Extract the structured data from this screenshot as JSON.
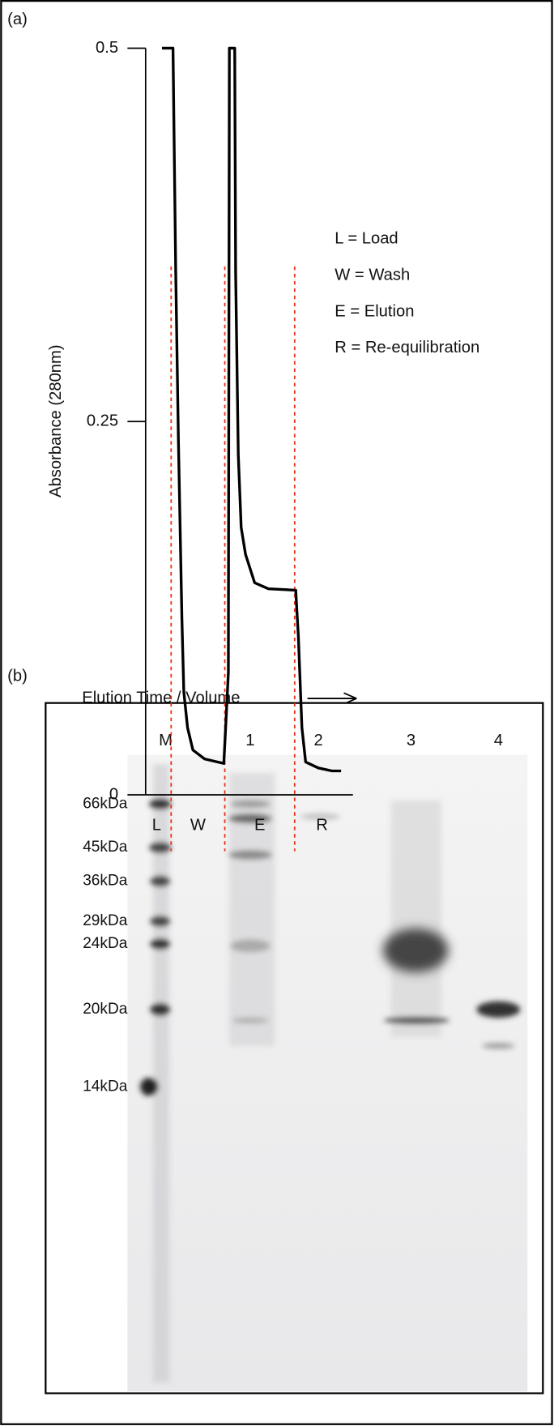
{
  "panel_a_label": "(a)",
  "chart_data": {
    "type": "line",
    "y_label": "Absorbance (280nm)",
    "x_label": "Elution Time / Volume",
    "xlim": [
      0,
      100
    ],
    "ylim": [
      0,
      0.5
    ],
    "yticks": [
      0,
      0.25,
      0.5
    ],
    "regions": [
      "L",
      "W",
      "E",
      "R"
    ],
    "boundaries": [
      12.3,
      38.2,
      71.9
    ],
    "boundary_color": "#e8341c",
    "annotations": [
      "L = Load",
      "W = Wash",
      "E = Elution",
      "R = Re-equilibration"
    ],
    "series": [
      {
        "color": "#000000",
        "x": [
          7.9,
          13.2,
          14.5,
          15.8,
          17.5,
          18.4,
          20.2,
          22.8,
          28.5,
          37.7,
          38.6,
          39.9,
          40.4,
          43.0,
          43.4,
          44.7,
          46.1,
          48.2,
          52.6,
          59.2,
          72.4,
          73.7,
          75.4,
          77.2,
          83.3,
          89.9,
          94.3
        ],
        "values": [
          0.5,
          0.5,
          0.35,
          0.239,
          0.118,
          0.069,
          0.045,
          0.03,
          0.024,
          0.021,
          0.045,
          0.082,
          0.5,
          0.5,
          0.35,
          0.228,
          0.179,
          0.161,
          0.142,
          0.138,
          0.137,
          0.106,
          0.045,
          0.022,
          0.018,
          0.016,
          0.016
        ]
      }
    ]
  },
  "panel_b_label": "(b)",
  "gel": {
    "lanes": [
      "M",
      "1",
      "2",
      "3",
      "4"
    ],
    "markers": [
      "66kDa",
      "45kDa",
      "36kDa",
      "29kDa",
      "24kDa",
      "20kDa",
      "14kDa"
    ]
  }
}
